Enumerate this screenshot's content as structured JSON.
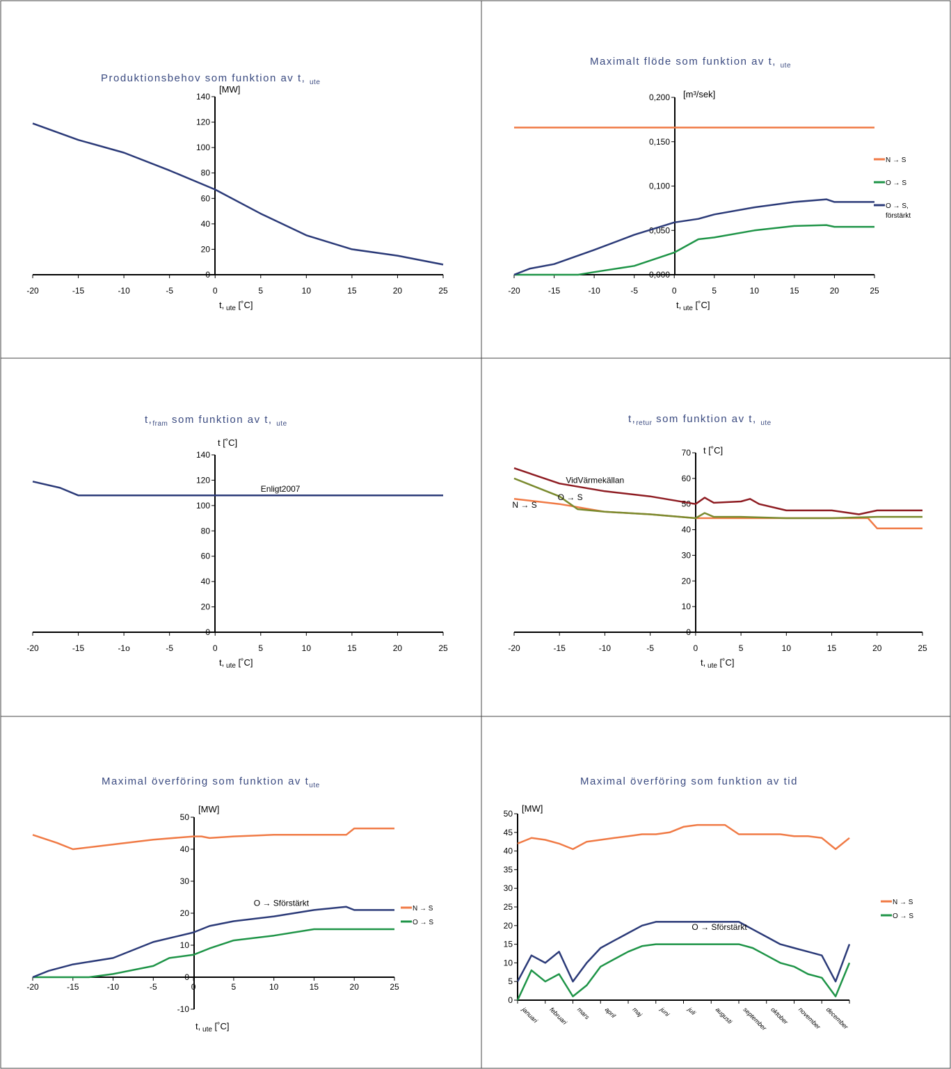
{
  "colors": {
    "orange": "#f07a45",
    "green": "#1e9447",
    "navy": "#2b3a78",
    "darkred": "#8e1c22",
    "olive": "#7a8a2e",
    "axis": "#000000",
    "frame": "#444444",
    "title": "#3a4a80"
  },
  "chart_data": [
    {
      "type": "line",
      "title": "Produktionsbehov som funktion av t,",
      "title_sub": "ute",
      "ylabel": "[MW]",
      "xlabel": "t,",
      "xlabel_sub": "ute",
      "xlabel_unit": "[˚C]",
      "xlim": [
        -20,
        25
      ],
      "ylim": [
        0,
        140
      ],
      "xticks": [
        -20,
        -15,
        -10,
        -5,
        0,
        5,
        10,
        15,
        20,
        25
      ],
      "xtick_labels": [
        "-20",
        "-15",
        "-10",
        "-5",
        "0",
        "5",
        "10",
        "15",
        "20",
        "25"
      ],
      "yticks": [
        0,
        20,
        40,
        60,
        80,
        100,
        120,
        140
      ],
      "ytick_labels": [
        "0",
        "20",
        "40",
        "60",
        "80",
        "100",
        "120",
        "140"
      ],
      "series": [
        {
          "color": "navy",
          "x": [
            -20,
            -15,
            -10,
            -5,
            0,
            5,
            10,
            15,
            20,
            25
          ],
          "y": [
            119,
            106,
            96,
            82,
            67,
            48,
            31,
            20,
            15,
            8
          ]
        }
      ],
      "labels": []
    },
    {
      "type": "line",
      "title": "Maximalt flöde som funktion av t,",
      "title_sub": "ute",
      "ylabel": "[m³/sek]",
      "xlabel": "t,",
      "xlabel_sub": "ute",
      "xlabel_unit": "[˚C]",
      "xlim": [
        -20,
        25
      ],
      "ylim": [
        0,
        0.2
      ],
      "xticks": [
        -20,
        -15,
        -10,
        -5,
        0,
        5,
        10,
        15,
        20,
        25
      ],
      "xtick_labels": [
        "-20",
        "-15",
        "-10",
        "-5",
        "0",
        "5",
        "10",
        "15",
        "20",
        "25"
      ],
      "yticks": [
        0,
        0.05,
        0.1,
        0.15,
        0.2
      ],
      "ytick_labels": [
        "0,000",
        "0,050",
        "0,100",
        "0,150",
        "0,200"
      ],
      "series": [
        {
          "name": "N → S",
          "color": "orange",
          "x": [
            -20,
            25
          ],
          "y": [
            0.166,
            0.166
          ]
        },
        {
          "name": "O → S",
          "color": "green",
          "x": [
            -20,
            -15,
            -12,
            -10,
            -5,
            0,
            3,
            5,
            10,
            15,
            19,
            20,
            25
          ],
          "y": [
            0,
            0,
            0,
            0.003,
            0.01,
            0.025,
            0.04,
            0.042,
            0.05,
            0.055,
            0.056,
            0.054,
            0.054
          ]
        },
        {
          "name": "O → S, förstärkt",
          "color": "navy",
          "x": [
            -20,
            -18,
            -15,
            -10,
            -5,
            0,
            3,
            5,
            10,
            15,
            19,
            20,
            25
          ],
          "y": [
            0,
            0.007,
            0.012,
            0.028,
            0.045,
            0.059,
            0.063,
            0.068,
            0.076,
            0.082,
            0.085,
            0.082,
            0.082
          ]
        }
      ],
      "labels": []
    },
    {
      "type": "line",
      "title": "t,",
      "title_sub": "fram",
      "title_rest": " som funktion av t,",
      "title_sub2": "ute",
      "ylabel": "t [˚C]",
      "xlabel": "t,",
      "xlabel_sub": "ute",
      "xlabel_unit": "[˚C]",
      "xlim": [
        -20,
        25
      ],
      "ylim": [
        0,
        140
      ],
      "xticks": [
        -20,
        -15,
        -10,
        -5,
        0,
        5,
        10,
        15,
        20,
        25
      ],
      "xtick_labels": [
        "-20",
        "-15",
        "-1o",
        "-5",
        "0",
        "5",
        "10",
        "15",
        "20",
        "25"
      ],
      "yticks": [
        0,
        20,
        40,
        60,
        80,
        100,
        120,
        140
      ],
      "ytick_labels": [
        "0",
        "20",
        "40",
        "60",
        "80",
        "100",
        "120",
        "140"
      ],
      "series": [
        {
          "color": "navy",
          "x": [
            -20,
            -17,
            -15,
            -14,
            0,
            25
          ],
          "y": [
            119,
            114,
            108,
            108,
            108,
            108
          ]
        }
      ],
      "labels": [
        {
          "text": "Enligt2007",
          "x": 5,
          "y": 111
        }
      ]
    },
    {
      "type": "line",
      "title": "t,",
      "title_sub": "retur",
      "title_rest": " som funktion av t,",
      "title_sub2": "ute",
      "ylabel": "t [˚C]",
      "xlabel": "t,",
      "xlabel_sub": "ute",
      "xlabel_unit": "[˚C]",
      "xlim": [
        -20,
        25
      ],
      "ylim": [
        0,
        70
      ],
      "xticks": [
        -20,
        -15,
        -10,
        -5,
        0,
        5,
        10,
        15,
        20,
        25
      ],
      "xtick_labels": [
        "-20",
        "-15",
        "-10",
        "-5",
        "0",
        "5",
        "10",
        "15",
        "20",
        "25"
      ],
      "yticks": [
        0,
        10,
        20,
        30,
        40,
        50,
        60,
        70
      ],
      "ytick_labels": [
        "0",
        "10",
        "20",
        "30",
        "40",
        "50",
        "60",
        "70"
      ],
      "series": [
        {
          "name": "VidVärmekällan",
          "color": "darkred",
          "x": [
            -20,
            -15,
            -10,
            -5,
            0,
            1,
            2,
            5,
            6,
            7,
            10,
            15,
            18,
            20,
            25
          ],
          "y": [
            64,
            58,
            55,
            53,
            50,
            52.5,
            50.5,
            51,
            52,
            50,
            47.5,
            47.5,
            46,
            47.5,
            47.5
          ]
        },
        {
          "name": "N → S",
          "color": "orange",
          "x": [
            -20,
            -15,
            -10,
            -5,
            0,
            5,
            10,
            15,
            19,
            20,
            25
          ],
          "y": [
            52,
            50,
            47,
            46,
            44.5,
            44.5,
            44.5,
            44.5,
            44.5,
            40.5,
            40.5
          ]
        },
        {
          "name": "O → S",
          "color": "olive",
          "x": [
            -20,
            -15,
            -13,
            -10,
            -5,
            0,
            1,
            2,
            5,
            10,
            15,
            20,
            25
          ],
          "y": [
            60,
            53,
            48,
            47,
            46,
            44.5,
            46.5,
            45,
            45,
            44.5,
            44.5,
            45,
            45
          ]
        }
      ],
      "labels": [
        {
          "text": "VidVärmekällan",
          "x": -14.3,
          "y": 58.2
        },
        {
          "text": "O → S",
          "x": -15.2,
          "y": 51.5
        },
        {
          "text": "N → S",
          "x": -20.2,
          "y": 48.5
        }
      ]
    },
    {
      "type": "line",
      "title": "Maximal överföring som funktion av t",
      "title_sub": "ute",
      "ylabel": "[MW]",
      "xlabel": "t,",
      "xlabel_sub": "ute",
      "xlabel_unit": "[˚C]",
      "xlim": [
        -20,
        25
      ],
      "ylim": [
        -10,
        50
      ],
      "xticks": [
        -20,
        -15,
        -10,
        -5,
        0,
        5,
        10,
        15,
        20,
        25
      ],
      "xtick_labels": [
        "-20",
        "-15",
        "-10",
        "-5",
        "0",
        "5",
        "10",
        "15",
        "20",
        "25"
      ],
      "yticks": [
        -10,
        0,
        10,
        20,
        30,
        40,
        50
      ],
      "ytick_labels": [
        "-10",
        "0",
        "10",
        "20",
        "30",
        "40",
        "50"
      ],
      "series": [
        {
          "name": "N → S",
          "color": "orange",
          "x": [
            -20,
            -17,
            -15,
            -10,
            -5,
            0,
            1,
            2,
            5,
            10,
            15,
            19,
            20,
            25
          ],
          "y": [
            44.5,
            42,
            40,
            41.5,
            43,
            44,
            44,
            43.5,
            44,
            44.5,
            44.5,
            44.5,
            46.5,
            46.5
          ]
        },
        {
          "name": "O → S",
          "color": "green",
          "x": [
            -20,
            -13,
            -10,
            -5,
            -3,
            0,
            2,
            5,
            10,
            15,
            19,
            20,
            25
          ],
          "y": [
            0,
            0,
            1,
            3.5,
            6,
            7,
            9,
            11.5,
            13,
            15,
            15,
            15,
            15
          ]
        },
        {
          "name": "O → Sförstärkt",
          "color": "navy",
          "x": [
            -20,
            -18,
            -15,
            -10,
            -5,
            0,
            2,
            5,
            10,
            15,
            19,
            20,
            25
          ],
          "y": [
            0,
            2,
            4,
            6,
            11,
            14,
            16,
            17.5,
            19,
            21,
            22,
            21,
            21
          ]
        }
      ],
      "labels": [
        {
          "text": "O → Sförstärkt",
          "x": 7.5,
          "y": 22.3
        }
      ]
    },
    {
      "type": "line",
      "title": "Maximal överföring som funktion av tid",
      "ylabel": "[MW]",
      "xlim": [
        0,
        12
      ],
      "ylim": [
        0,
        50
      ],
      "xticks": [
        0,
        1,
        2,
        3,
        4,
        5,
        6,
        7,
        8,
        9,
        10,
        11,
        12
      ],
      "month_labels": [
        "januari",
        "februari",
        "mars",
        "april",
        "maj",
        "juni",
        "juli",
        "augusti",
        "september",
        "oktober",
        "november",
        "december"
      ],
      "yticks": [
        0,
        5,
        10,
        15,
        20,
        25,
        30,
        35,
        40,
        45,
        50
      ],
      "ytick_labels": [
        "0",
        "5",
        "10",
        "15",
        "20",
        "25",
        "30",
        "35",
        "40",
        "45",
        "50"
      ],
      "series": [
        {
          "name": "N → S",
          "color": "orange",
          "x": [
            0,
            0.5,
            1,
            1.5,
            2,
            2.5,
            3,
            3.5,
            4,
            4.5,
            5,
            5.5,
            6,
            6.5,
            7,
            7.5,
            8,
            8.5,
            9,
            9.5,
            10,
            10.5,
            11,
            11.5,
            12
          ],
          "y": [
            42,
            43.5,
            43,
            42,
            40.5,
            42.5,
            43,
            43.5,
            44,
            44.5,
            44.5,
            45,
            46.5,
            47,
            47,
            47,
            44.5,
            44.5,
            44.5,
            44.5,
            44,
            44,
            43.5,
            40.5,
            43.5
          ]
        },
        {
          "name": "O → S",
          "color": "green",
          "x": [
            0,
            0.5,
            1,
            1.5,
            2,
            2.5,
            3,
            3.5,
            4,
            4.5,
            5,
            5.5,
            6,
            6.5,
            7,
            7.5,
            8,
            8.5,
            9,
            9.5,
            10,
            10.5,
            11,
            11.5,
            12
          ],
          "y": [
            0,
            8,
            5,
            7,
            1,
            4,
            9,
            11,
            13,
            14.5,
            15,
            15,
            15,
            15,
            15,
            15,
            15,
            14,
            12,
            10,
            9,
            7,
            6,
            1,
            10
          ]
        },
        {
          "name": "O → Sförstärkt",
          "color": "navy",
          "x": [
            0,
            0.5,
            1,
            1.5,
            2,
            2.5,
            3,
            3.5,
            4,
            4.5,
            5,
            5.5,
            6,
            6.5,
            7,
            7.5,
            8,
            8.5,
            9,
            9.5,
            10,
            10.5,
            11,
            11.5,
            12
          ],
          "y": [
            5,
            12,
            10,
            13,
            5,
            10,
            14,
            16,
            18,
            20,
            21,
            21,
            21,
            21,
            21,
            21,
            21,
            19,
            17,
            15,
            14,
            13,
            12,
            5,
            15
          ]
        }
      ],
      "labels": [
        {
          "text": "O → Sförstärkt",
          "x": 6.3,
          "y": 18.8
        }
      ]
    }
  ],
  "legends": [
    {
      "panel": 1,
      "items": [
        {
          "text": "N → S",
          "color": "orange"
        },
        {
          "text": "O → S",
          "color": "green"
        },
        {
          "text": "O → S,",
          "text2": "förstärkt",
          "color": "navy"
        }
      ]
    },
    {
      "panel": 4,
      "items": [
        {
          "text": "N → S",
          "color": "orange"
        },
        {
          "text": "O → S",
          "color": "green"
        }
      ]
    },
    {
      "panel": 5,
      "items": [
        {
          "text": "N → S",
          "color": "orange"
        },
        {
          "text": "O → S",
          "color": "green"
        }
      ]
    }
  ]
}
